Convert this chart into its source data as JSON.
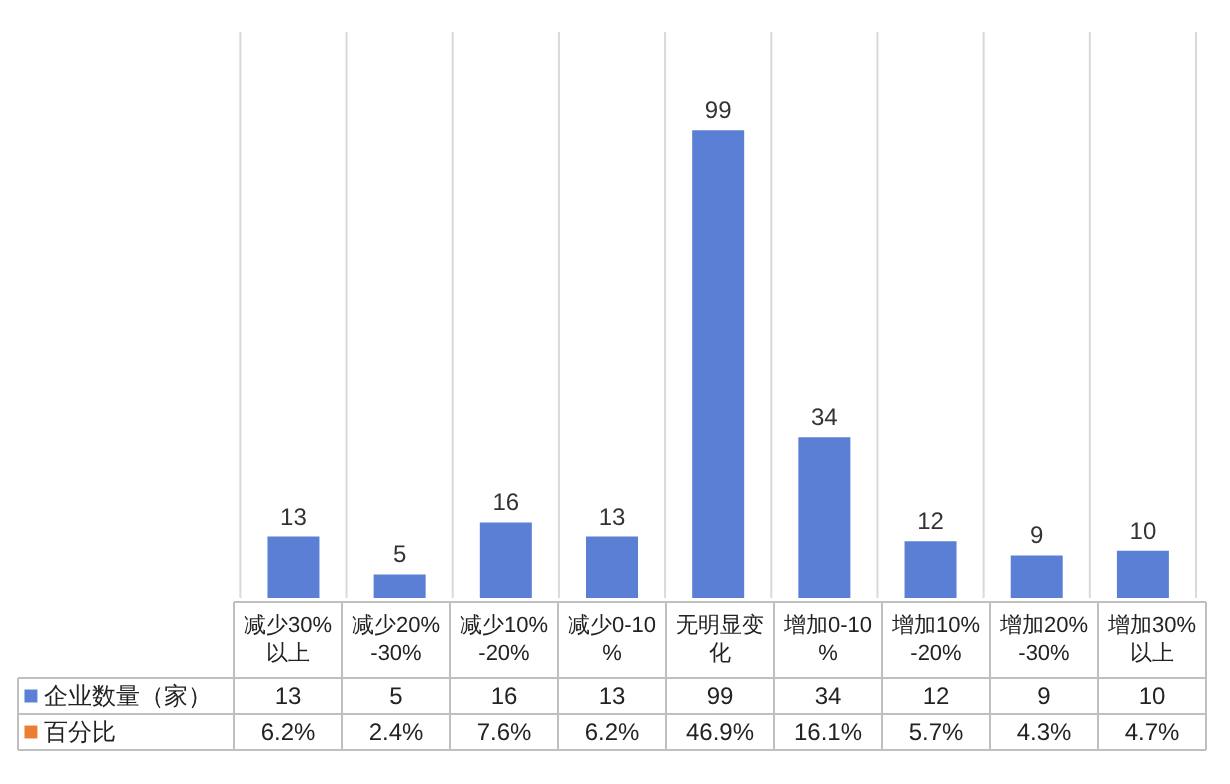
{
  "chart_data": {
    "type": "bar",
    "categories": [
      "减少30%以上",
      "减少20%-30%",
      "减少10%-20%",
      "减少0-10%",
      "无明显变化",
      "增加0-10%",
      "增加10%-20%",
      "增加20%-30%",
      "增加30%以上"
    ],
    "series": [
      {
        "name": "企业数量（家）",
        "color": "#5a7fd4",
        "values": [
          13,
          5,
          16,
          13,
          99,
          34,
          12,
          9,
          10
        ],
        "value_labels": [
          "13",
          "5",
          "16",
          "13",
          "99",
          "34",
          "12",
          "9",
          "10"
        ]
      },
      {
        "name": "百分比",
        "color": "#ed7d31",
        "values": [
          null,
          null,
          null,
          null,
          null,
          null,
          null,
          null,
          null
        ],
        "value_labels": [
          "6.2%",
          "2.4%",
          "7.6%",
          "6.2%",
          "46.9%",
          "16.1%",
          "5.7%",
          "4.3%",
          "4.7%"
        ]
      }
    ],
    "data_labels": true,
    "grid": "x",
    "legend": "bottom"
  }
}
